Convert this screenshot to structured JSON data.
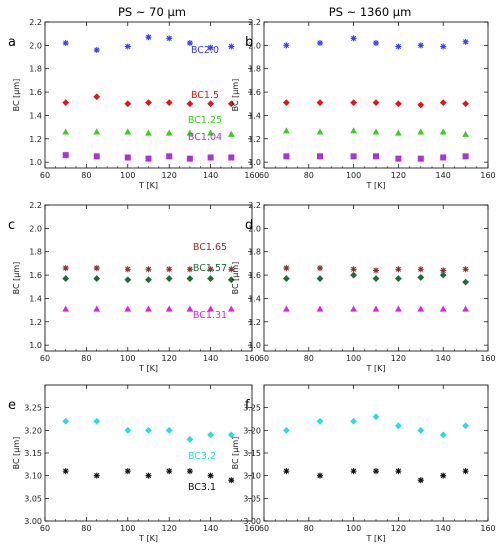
{
  "column_titles": [
    "PS ~ 70 μm",
    "PS ~ 1360 μm"
  ],
  "chart_data": [
    {
      "type": "scatter",
      "panel_letter": "a",
      "xlabel": "T [K]",
      "ylabel": "BC [μm]",
      "xlim": [
        60,
        160
      ],
      "ylim": [
        0.95,
        2.2
      ],
      "xticks": [
        60,
        80,
        100,
        120,
        140,
        160
      ],
      "yticks": [
        1.0,
        1.2,
        1.4,
        1.6,
        1.8,
        2.0,
        2.2
      ],
      "ytick_labels": [
        "1.0",
        "1.2",
        "1.4",
        "1.6",
        "1.8",
        "2.0",
        "2.2"
      ],
      "x": [
        70,
        85,
        100,
        110,
        120,
        130,
        140,
        150
      ],
      "series": [
        {
          "name": "BC2.0",
          "marker": "asterisk",
          "color": "#3b3bff",
          "values": [
            2.02,
            1.96,
            1.99,
            2.07,
            2.06,
            2.02,
            1.98,
            1.99
          ]
        },
        {
          "name": "BC1.5",
          "marker": "diamond",
          "color": "#e8141c",
          "values": [
            1.51,
            1.56,
            1.5,
            1.51,
            1.51,
            1.5,
            1.5,
            1.5
          ]
        },
        {
          "name": "BC1.25",
          "marker": "triangle",
          "color": "#3ccf22",
          "values": [
            1.26,
            1.26,
            1.26,
            1.25,
            1.25,
            1.25,
            1.25,
            1.24
          ]
        },
        {
          "name": "BC1.04",
          "marker": "square",
          "color": "#b12fe0",
          "values": [
            1.06,
            1.05,
            1.04,
            1.03,
            1.05,
            1.03,
            1.04,
            1.04
          ]
        }
      ]
    },
    {
      "type": "scatter",
      "panel_letter": "b",
      "xlabel": "T [K]",
      "ylabel": "BC [μm]",
      "xlim": [
        60,
        160
      ],
      "ylim": [
        0.95,
        2.2
      ],
      "xticks": [
        60,
        80,
        100,
        120,
        140,
        160
      ],
      "yticks": [
        1.0,
        1.2,
        1.4,
        1.6,
        1.8,
        2.0,
        2.2
      ],
      "ytick_labels": [
        "1.0",
        "1.2",
        "1.4",
        "1.6",
        "1.8",
        "2.0",
        "2.2"
      ],
      "x": [
        70,
        85,
        100,
        110,
        120,
        130,
        140,
        150
      ],
      "series": [
        {
          "name": "",
          "marker": "asterisk",
          "color": "#3b3bff",
          "values": [
            2.0,
            2.02,
            2.06,
            2.02,
            1.99,
            2.0,
            1.99,
            2.03
          ]
        },
        {
          "name": "",
          "marker": "diamond",
          "color": "#e8141c",
          "values": [
            1.51,
            1.51,
            1.51,
            1.51,
            1.5,
            1.49,
            1.51,
            1.5
          ]
        },
        {
          "name": "",
          "marker": "triangle",
          "color": "#3ccf22",
          "values": [
            1.27,
            1.26,
            1.27,
            1.26,
            1.25,
            1.26,
            1.26,
            1.24
          ]
        },
        {
          "name": "",
          "marker": "square",
          "color": "#b12fe0",
          "values": [
            1.05,
            1.05,
            1.05,
            1.05,
            1.03,
            1.03,
            1.04,
            1.05
          ]
        }
      ]
    },
    {
      "type": "scatter",
      "panel_letter": "c",
      "xlabel": "T [K]",
      "ylabel": "BC [μm]",
      "xlim": [
        60,
        160
      ],
      "ylim": [
        0.95,
        2.2
      ],
      "xticks": [
        60,
        80,
        100,
        120,
        140,
        160
      ],
      "yticks": [
        1.0,
        1.2,
        1.4,
        1.6,
        1.8,
        2.0,
        2.2
      ],
      "ytick_labels": [
        "1.0",
        "1.2",
        "1.4",
        "1.6",
        "1.8",
        "2.0",
        "2.2"
      ],
      "x": [
        70,
        85,
        100,
        110,
        120,
        130,
        140,
        150
      ],
      "series": [
        {
          "name": "BC1.65",
          "marker": "asterisk",
          "color": "#8b3030",
          "values": [
            1.66,
            1.66,
            1.65,
            1.65,
            1.65,
            1.65,
            1.65,
            1.65
          ]
        },
        {
          "name": "BC1.57",
          "marker": "diamond",
          "color": "#1d6b3a",
          "values": [
            1.57,
            1.57,
            1.56,
            1.56,
            1.57,
            1.57,
            1.57,
            1.56
          ]
        },
        {
          "name": "BC1.31",
          "marker": "triangle",
          "color": "#e025d8",
          "values": [
            1.31,
            1.31,
            1.31,
            1.31,
            1.31,
            1.31,
            1.31,
            1.31
          ]
        }
      ]
    },
    {
      "type": "scatter",
      "panel_letter": "d",
      "xlabel": "T [K]",
      "ylabel": "BC [μm]",
      "xlim": [
        60,
        160
      ],
      "ylim": [
        0.95,
        2.2
      ],
      "xticks": [
        60,
        80,
        100,
        120,
        140,
        160
      ],
      "yticks": [
        1.0,
        1.2,
        1.4,
        1.6,
        1.8,
        2.0,
        2.2
      ],
      "ytick_labels": [
        "1.0",
        "1.2",
        "1.4",
        "1.6",
        "1.8",
        "2.0",
        "2.2"
      ],
      "x": [
        70,
        85,
        100,
        110,
        120,
        130,
        140,
        150
      ],
      "series": [
        {
          "name": "",
          "marker": "asterisk",
          "color": "#8b3030",
          "values": [
            1.66,
            1.66,
            1.65,
            1.64,
            1.65,
            1.65,
            1.64,
            1.65
          ]
        },
        {
          "name": "",
          "marker": "diamond",
          "color": "#1d6b3a",
          "values": [
            1.57,
            1.57,
            1.6,
            1.57,
            1.57,
            1.58,
            1.6,
            1.54
          ]
        },
        {
          "name": "",
          "marker": "triangle",
          "color": "#e025d8",
          "values": [
            1.31,
            1.31,
            1.31,
            1.31,
            1.31,
            1.31,
            1.31,
            1.31
          ]
        }
      ]
    },
    {
      "type": "scatter",
      "panel_letter": "e",
      "xlabel": "T [K]",
      "ylabel": "BC [μm]",
      "xlim": [
        60,
        160
      ],
      "ylim": [
        3.0,
        3.3
      ],
      "xticks": [
        60,
        80,
        100,
        120,
        140,
        160
      ],
      "yticks": [
        3.0,
        3.05,
        3.1,
        3.15,
        3.2,
        3.25
      ],
      "ytick_labels": [
        "3.00",
        "3.05",
        "3.10",
        "3.15",
        "3.20",
        "3.25"
      ],
      "x": [
        70,
        85,
        100,
        110,
        120,
        130,
        140,
        150
      ],
      "series": [
        {
          "name": "BC3.2",
          "marker": "diamond",
          "color": "#1fe0e6",
          "values": [
            3.22,
            3.22,
            3.2,
            3.2,
            3.2,
            3.18,
            3.19,
            3.19
          ]
        },
        {
          "name": "BC3.1",
          "marker": "asterisk",
          "color": "#111111",
          "values": [
            3.11,
            3.1,
            3.11,
            3.1,
            3.11,
            3.11,
            3.1,
            3.09
          ]
        }
      ]
    },
    {
      "type": "scatter",
      "panel_letter": "f",
      "xlabel": "T [K]",
      "ylabel": "BC [μm]",
      "xlim": [
        60,
        160
      ],
      "ylim": [
        3.0,
        3.3
      ],
      "xticks": [
        60,
        80,
        100,
        120,
        140,
        160
      ],
      "yticks": [
        3.0,
        3.05,
        3.1,
        3.15,
        3.2,
        3.25
      ],
      "ytick_labels": [
        "3.00",
        "3.05",
        "3.10",
        "3.15",
        "3.20",
        "3.25"
      ],
      "x": [
        70,
        85,
        100,
        110,
        120,
        130,
        140,
        150
      ],
      "series": [
        {
          "name": "",
          "marker": "diamond",
          "color": "#1fe0e6",
          "values": [
            3.2,
            3.22,
            3.22,
            3.23,
            3.21,
            3.2,
            3.19,
            3.21
          ]
        },
        {
          "name": "",
          "marker": "asterisk",
          "color": "#111111",
          "values": [
            3.11,
            3.1,
            3.11,
            3.11,
            3.11,
            3.09,
            3.1,
            3.11
          ]
        }
      ]
    }
  ]
}
